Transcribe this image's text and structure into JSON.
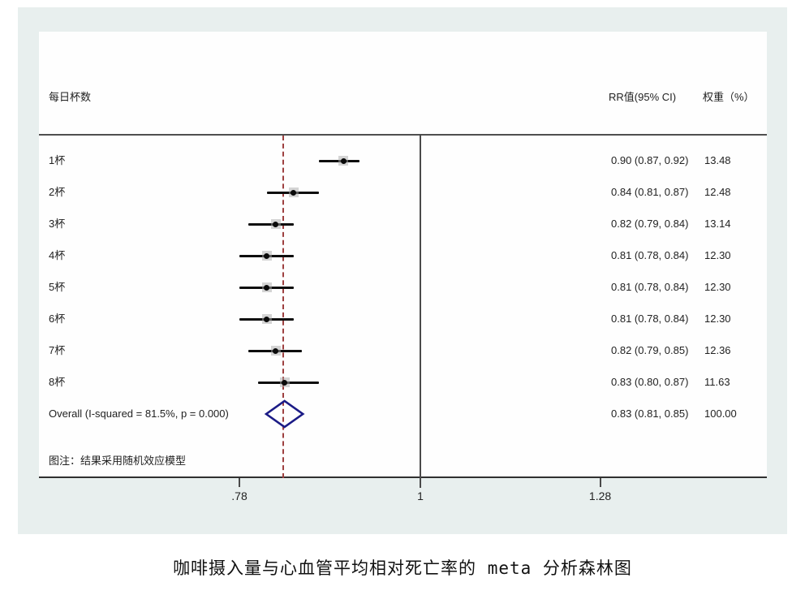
{
  "figure": {
    "header": {
      "left_label": "每日杯数",
      "rr_label": "RR值(95% CI)",
      "weight_label": "权重（%）"
    },
    "rows": [
      {
        "label": "1杯",
        "rr_text": "0.90 (0.87, 0.92)",
        "weight": "13.48",
        "rr": 0.9,
        "lo": 0.87,
        "hi": 0.92
      },
      {
        "label": "2杯",
        "rr_text": "0.84 (0.81, 0.87)",
        "weight": "12.48",
        "rr": 0.84,
        "lo": 0.81,
        "hi": 0.87
      },
      {
        "label": "3杯",
        "rr_text": "0.82 (0.79, 0.84)",
        "weight": "13.14",
        "rr": 0.82,
        "lo": 0.79,
        "hi": 0.84
      },
      {
        "label": "4杯",
        "rr_text": "0.81 (0.78, 0.84)",
        "weight": "12.30",
        "rr": 0.81,
        "lo": 0.78,
        "hi": 0.84
      },
      {
        "label": "5杯",
        "rr_text": "0.81 (0.78, 0.84)",
        "weight": "12.30",
        "rr": 0.81,
        "lo": 0.78,
        "hi": 0.84
      },
      {
        "label": "6杯",
        "rr_text": "0.81 (0.78, 0.84)",
        "weight": "12.30",
        "rr": 0.81,
        "lo": 0.78,
        "hi": 0.84
      },
      {
        "label": "7杯",
        "rr_text": "0.82 (0.79, 0.85)",
        "weight": "12.36",
        "rr": 0.82,
        "lo": 0.79,
        "hi": 0.85
      },
      {
        "label": "8杯",
        "rr_text": "0.83 (0.80, 0.87)",
        "weight": "11.63",
        "rr": 0.83,
        "lo": 0.8,
        "hi": 0.87
      }
    ],
    "overall": {
      "label": "Overall  (I-squared = 81.5%, p = 0.000)",
      "rr_text": "0.83 (0.81, 0.85)",
      "weight": "100.00",
      "rr": 0.83,
      "lo": 0.81,
      "hi": 0.85
    },
    "note": "图注：结果采用随机效应模型",
    "axis": {
      "scale": "log",
      "ticks": [
        {
          "value": 0.78,
          "label": ".78"
        },
        {
          "value": 1,
          "label": "1"
        },
        {
          "value": 1.28,
          "label": "1.28"
        }
      ],
      "null_line_value": 1,
      "overall_line_value": 0.83
    },
    "colors": {
      "figure_background": "#e8efee",
      "panel_background": "#fefefe",
      "ci_line": "#0d0d0d",
      "overall_dashed_line": "#9e4040",
      "diamond_stroke": "#1b1b86",
      "axis_line": "#303030"
    }
  },
  "caption": "咖啡摄入量与心血管平均相对死亡率的 meta 分析森林图",
  "chart_data": {
    "type": "scatter",
    "subtype": "forest-plot-meta-analysis",
    "title": "咖啡摄入量与心血管平均相对死亡率的 meta 分析森林图",
    "x_scale": "log",
    "x_ticks": [
      0.78,
      1,
      1.28
    ],
    "xlim_approx": [
      0.58,
      1.6
    ],
    "null_line": 1,
    "overall_dashed_line": 0.83,
    "categories": [
      "1杯",
      "2杯",
      "3杯",
      "4杯",
      "5杯",
      "6杯",
      "7杯",
      "8杯"
    ],
    "rr": [
      0.9,
      0.84,
      0.82,
      0.81,
      0.81,
      0.81,
      0.82,
      0.83
    ],
    "ci_low": [
      0.87,
      0.81,
      0.79,
      0.78,
      0.78,
      0.78,
      0.79,
      0.8
    ],
    "ci_high": [
      0.92,
      0.87,
      0.84,
      0.84,
      0.84,
      0.84,
      0.85,
      0.87
    ],
    "weights_pct": [
      13.48,
      12.48,
      13.14,
      12.3,
      12.3,
      12.3,
      12.36,
      11.63
    ],
    "overall": {
      "rr": 0.83,
      "ci_low": 0.81,
      "ci_high": 0.85,
      "weight_pct": 100.0,
      "i_squared": "81.5%",
      "p": "0.000"
    },
    "note": "图注：结果采用随机效应模型",
    "columns": [
      "每日杯数",
      "RR值(95% CI)",
      "权重（%）"
    ],
    "legend_position": "none",
    "grid": false
  }
}
